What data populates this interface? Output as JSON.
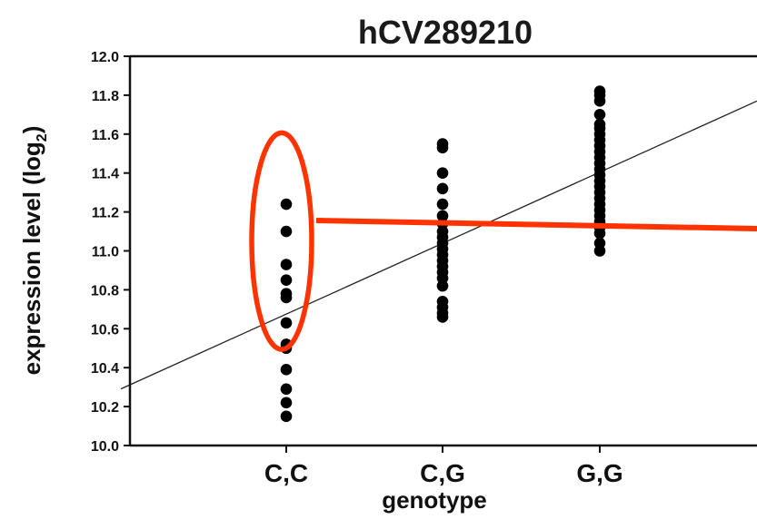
{
  "chart_data": {
    "type": "scatter",
    "title": "hCV289210",
    "xlabel": "genotype",
    "ylabel_main": "expression level (log",
    "ylabel_sub": "2",
    "ylabel_close": ")",
    "categories": [
      "C,C",
      "C,G",
      "G,G"
    ],
    "ylim": [
      10.0,
      12.0
    ],
    "yticks": [
      "10.0",
      "10.2",
      "10.4",
      "10.6",
      "10.8",
      "11.0",
      "11.2",
      "11.4",
      "11.6",
      "11.8",
      "12.0"
    ],
    "grid": false,
    "series": [
      {
        "values_by_category": [
          [
            11.24,
            11.1,
            10.93,
            10.85,
            10.78,
            10.76,
            10.63,
            10.52,
            10.5,
            10.39,
            10.29,
            10.22,
            10.15
          ],
          [
            11.55,
            11.53,
            11.4,
            11.32,
            11.24,
            11.18,
            11.14,
            11.1,
            11.07,
            11.04,
            11.01,
            10.98,
            10.95,
            10.92,
            10.89,
            10.86,
            10.82,
            10.74,
            10.71,
            10.68,
            10.66
          ],
          [
            11.82,
            11.8,
            11.77,
            11.7,
            11.65,
            11.63,
            11.6,
            11.57,
            11.54,
            11.51,
            11.48,
            11.45,
            11.42,
            11.39,
            11.36,
            11.33,
            11.3,
            11.27,
            11.24,
            11.21,
            11.18,
            11.15,
            11.12,
            11.09,
            11.04,
            11.0
          ]
        ]
      }
    ],
    "trend_line": {
      "y_at_left": 10.3,
      "y_at_right": 11.77
    },
    "annotation": {
      "highlight_category": "C,C",
      "highlight_range": [
        10.68,
        11.42
      ],
      "color": "#ff3300"
    },
    "colors": {
      "points": "#000000",
      "axis": "#111111",
      "trend": "#222222"
    }
  }
}
